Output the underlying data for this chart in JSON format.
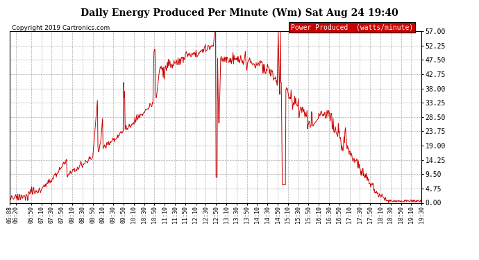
{
  "title": "Daily Energy Produced Per Minute (Wm) Sat Aug 24 19:40",
  "copyright": "Copyright 2019 Cartronics.com",
  "legend_label": "Power Produced  (watts/minute)",
  "legend_bg": "#cc0000",
  "line_color": "#cc0000",
  "bg_color": "#ffffff",
  "plot_bg": "#ffffff",
  "grid_color": "#999999",
  "ylim": [
    0,
    57.0
  ],
  "yticks": [
    0.0,
    4.75,
    9.5,
    14.25,
    19.0,
    23.75,
    28.5,
    33.25,
    38.0,
    42.75,
    47.5,
    52.25,
    57.0
  ],
  "ytick_labels": [
    "0.00",
    "4.75",
    "9.50",
    "14.25",
    "19.00",
    "23.75",
    "28.50",
    "33.25",
    "38.00",
    "42.75",
    "47.50",
    "52.25",
    "57.00"
  ],
  "xtick_labels": [
    "06:08",
    "06:20",
    "06:50",
    "07:10",
    "07:30",
    "07:50",
    "08:10",
    "08:30",
    "08:50",
    "09:10",
    "09:30",
    "09:50",
    "10:10",
    "10:30",
    "10:50",
    "11:10",
    "11:30",
    "11:50",
    "12:10",
    "12:30",
    "12:50",
    "13:10",
    "13:30",
    "13:50",
    "14:10",
    "14:30",
    "14:50",
    "15:10",
    "15:30",
    "15:50",
    "16:10",
    "16:30",
    "16:50",
    "17:10",
    "17:30",
    "17:50",
    "18:10",
    "18:30",
    "18:50",
    "19:10",
    "19:30"
  ]
}
